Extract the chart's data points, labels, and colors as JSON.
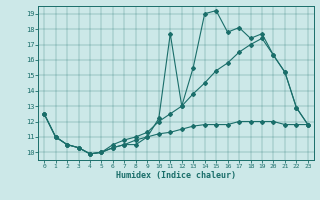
{
  "xlabel": "Humidex (Indice chaleur)",
  "xlim": [
    -0.5,
    23.5
  ],
  "ylim": [
    9.5,
    19.5
  ],
  "yticks": [
    10,
    11,
    12,
    13,
    14,
    15,
    16,
    17,
    18,
    19
  ],
  "xticks": [
    0,
    1,
    2,
    3,
    4,
    5,
    6,
    7,
    8,
    9,
    10,
    11,
    12,
    13,
    14,
    15,
    16,
    17,
    18,
    19,
    20,
    21,
    22,
    23
  ],
  "bg_color": "#cce8e8",
  "line_color": "#1a6e6a",
  "line1_x": [
    0,
    1,
    2,
    3,
    4,
    5,
    6,
    7,
    8,
    9,
    10,
    11,
    12,
    13,
    14,
    15,
    16,
    17,
    18,
    19,
    20,
    21,
    22,
    23
  ],
  "line1_y": [
    12.5,
    11.0,
    10.5,
    10.3,
    9.9,
    10.0,
    10.3,
    10.5,
    10.5,
    11.0,
    12.2,
    17.7,
    13.0,
    15.5,
    19.0,
    19.2,
    17.8,
    18.1,
    17.4,
    17.7,
    16.3,
    15.2,
    12.9,
    11.8
  ],
  "line2_x": [
    0,
    1,
    2,
    3,
    4,
    5,
    6,
    7,
    8,
    9,
    10,
    11,
    12,
    13,
    14,
    15,
    16,
    17,
    18,
    19,
    20,
    21,
    22,
    23
  ],
  "line2_y": [
    12.5,
    11.0,
    10.5,
    10.3,
    9.9,
    10.0,
    10.5,
    10.8,
    11.0,
    11.3,
    12.0,
    12.5,
    13.0,
    13.8,
    14.5,
    15.3,
    15.8,
    16.5,
    17.0,
    17.4,
    16.3,
    15.2,
    12.9,
    11.8
  ],
  "line3_x": [
    0,
    1,
    2,
    3,
    4,
    5,
    6,
    7,
    8,
    9,
    10,
    11,
    12,
    13,
    14,
    15,
    16,
    17,
    18,
    19,
    20,
    21,
    22,
    23
  ],
  "line3_y": [
    12.5,
    11.0,
    10.5,
    10.3,
    9.9,
    10.0,
    10.3,
    10.5,
    10.8,
    11.0,
    11.2,
    11.3,
    11.5,
    11.7,
    11.8,
    11.8,
    11.8,
    12.0,
    12.0,
    12.0,
    12.0,
    11.8,
    11.8,
    11.8
  ]
}
